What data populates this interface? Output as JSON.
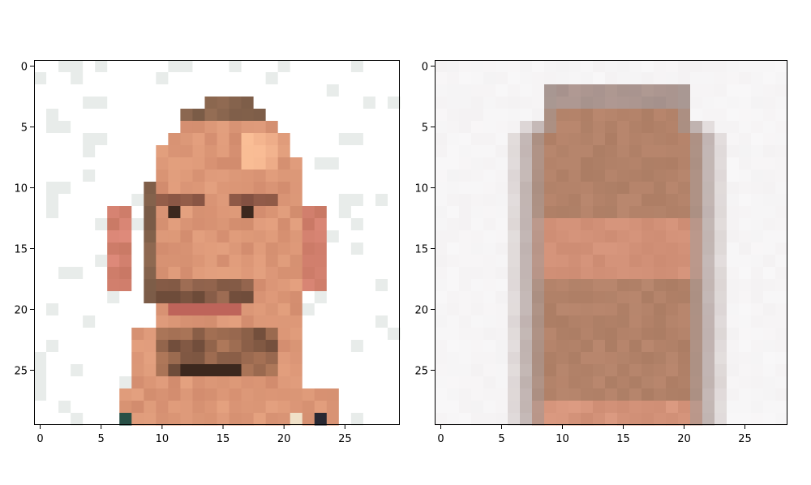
{
  "chart_data": [
    {
      "type": "heatmap",
      "title": "",
      "xlabel": "",
      "ylabel": "",
      "xlim": [
        -0.5,
        29.5
      ],
      "ylim": [
        29.5,
        -0.5
      ],
      "xticks": [
        "0",
        "5",
        "10",
        "15",
        "20",
        "25"
      ],
      "yticks": [
        "0",
        "5",
        "10",
        "15",
        "20",
        "25"
      ],
      "grid": false,
      "image": "pixelated photo of a man's face, 30x30 pixels"
    },
    {
      "type": "heatmap",
      "title": "",
      "xlabel": "",
      "ylabel": "",
      "xlim": [
        -0.5,
        28.5
      ],
      "ylim": [
        29.5,
        -0.5
      ],
      "xticks": [
        "0",
        "5",
        "10",
        "15",
        "20",
        "25"
      ],
      "yticks": [
        "0",
        "5",
        "10",
        "15",
        "20",
        "25"
      ],
      "grid": false,
      "image": "blurred low-rank reconstruction of the face, 29x30 pixels"
    }
  ]
}
